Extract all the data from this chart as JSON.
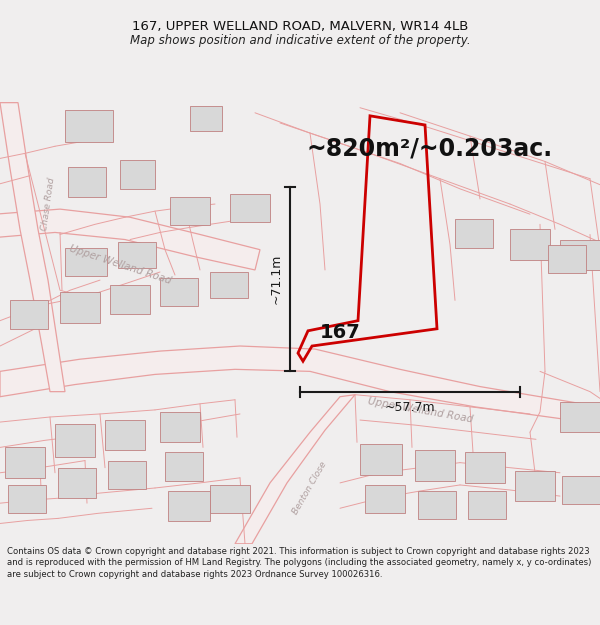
{
  "title_line1": "167, UPPER WELLAND ROAD, MALVERN, WR14 4LB",
  "title_line2": "Map shows position and indicative extent of the property.",
  "area_text": "~820m²/~0.203ac.",
  "label_167": "167",
  "dim_vertical": "~71.1m",
  "dim_horizontal": "~57.7m",
  "footer_text": "Contains OS data © Crown copyright and database right 2021. This information is subject to Crown copyright and database rights 2023 and is reproduced with the permission of HM Land Registry. The polygons (including the associated geometry, namely x, y co-ordinates) are subject to Crown copyright and database rights 2023 Ordnance Survey 100026316.",
  "bg_color": "#f0eeee",
  "map_bg": "#ffffff",
  "road_color": "#e8a0a0",
  "highlight_color": "#cc0000",
  "dim_color": "#1a1a1a",
  "building_color": "#d8d8d8",
  "building_edge": "#c08080"
}
